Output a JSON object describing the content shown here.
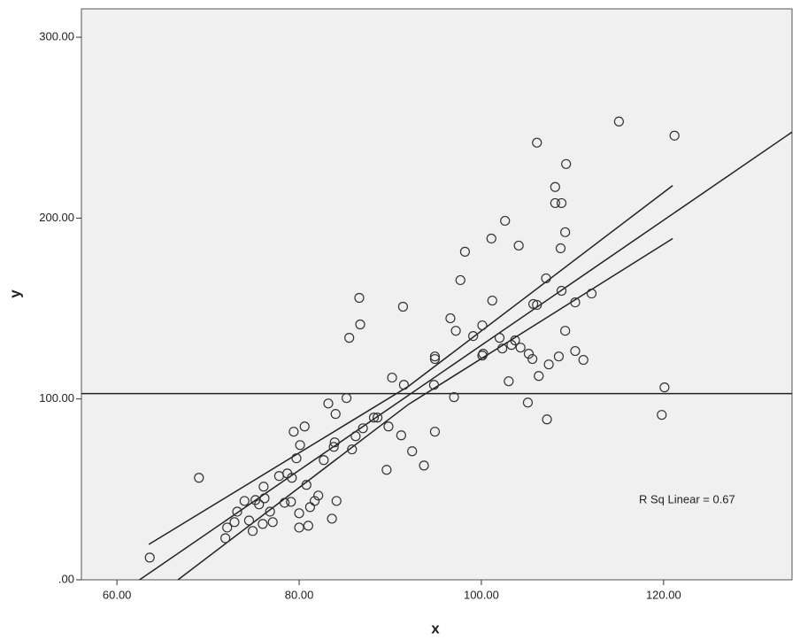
{
  "chart_data": {
    "type": "scatter",
    "xlabel": "x",
    "ylabel": "y",
    "annotation": "R Sq Linear = 0.67",
    "xlim": [
      56.1,
      134.1
    ],
    "ylim": [
      0,
      315.7
    ],
    "xticks": [
      {
        "value": 60,
        "label": "60.00"
      },
      {
        "value": 80,
        "label": "80.00"
      },
      {
        "value": 100,
        "label": "100.00"
      },
      {
        "value": 120,
        "label": "120.00"
      }
    ],
    "yticks": [
      {
        "value": 0,
        "label": ".00"
      },
      {
        "value": 100,
        "label": "100.00"
      },
      {
        "value": 200,
        "label": "200.00"
      },
      {
        "value": 300,
        "label": "300.00"
      }
    ],
    "color": "#333333",
    "background": "#f0f0f0",
    "x": [
      63.6,
      69.0,
      71.9,
      72.1,
      72.9,
      73.2,
      74.0,
      74.5,
      74.9,
      75.2,
      75.6,
      76.0,
      76.1,
      76.2,
      76.8,
      77.1,
      77.8,
      78.4,
      78.7,
      79.1,
      79.2,
      79.4,
      79.7,
      80.0,
      80.1,
      80.0,
      80.6,
      80.8,
      81.0,
      81.2,
      81.7,
      82.1,
      82.7,
      83.2,
      83.6,
      83.8,
      83.9,
      84.0,
      84.1,
      85.2,
      85.5,
      85.8,
      86.2,
      86.6,
      86.7,
      87.0,
      88.2,
      88.6,
      89.6,
      89.8,
      90.2,
      91.2,
      91.4,
      91.5,
      92.4,
      93.7,
      94.8,
      94.9,
      94.9,
      94.9,
      96.6,
      97.0,
      97.2,
      97.7,
      98.2,
      99.1,
      100.1,
      100.1,
      100.2,
      101.1,
      101.2,
      102.0,
      102.3,
      102.6,
      103.0,
      103.3,
      103.7,
      104.1,
      104.3,
      105.1,
      105.2,
      105.6,
      105.7,
      106.1,
      106.1,
      106.3,
      107.1,
      107.2,
      107.4,
      108.1,
      108.1,
      108.5,
      108.8,
      108.7,
      108.8,
      109.3,
      109.2,
      109.2,
      110.3,
      110.3,
      111.2,
      112.1,
      115.1,
      119.8,
      120.1,
      121.2
    ],
    "values": [
      12.3,
      56.4,
      23.0,
      28.9,
      31.9,
      37.7,
      43.6,
      32.8,
      27.0,
      44.1,
      41.7,
      30.9,
      51.5,
      45.1,
      37.7,
      31.9,
      57.4,
      42.6,
      58.8,
      43.1,
      56.4,
      81.9,
      67.2,
      36.8,
      74.5,
      28.9,
      84.8,
      52.5,
      29.9,
      40.2,
      43.6,
      46.6,
      66.2,
      97.5,
      33.8,
      73.5,
      76.0,
      91.7,
      43.6,
      100.5,
      133.8,
      72.1,
      79.4,
      155.9,
      141.2,
      83.8,
      89.7,
      89.7,
      60.8,
      84.8,
      111.8,
      79.9,
      151.0,
      107.8,
      71.1,
      63.2,
      107.8,
      123.5,
      122.1,
      81.9,
      144.6,
      101.0,
      137.7,
      165.7,
      181.4,
      134.8,
      140.7,
      124.0,
      125.0,
      188.7,
      154.4,
      133.8,
      127.9,
      198.5,
      109.8,
      129.9,
      132.4,
      184.8,
      128.4,
      98.0,
      125.0,
      122.1,
      152.5,
      152.0,
      241.7,
      112.7,
      166.7,
      88.7,
      119.1,
      217.2,
      208.3,
      123.5,
      208.3,
      183.3,
      159.8,
      229.9,
      192.2,
      137.7,
      153.4,
      126.5,
      121.6,
      158.3,
      253.4,
      91.2,
      106.4,
      245.6
    ],
    "fit": {
      "slope": 3.457,
      "intercept": -216
    },
    "mean_line": 103,
    "bands": [
      {
        "x": [
          63.5,
          92,
          121
        ],
        "y": [
          19.6,
          107,
          218
        ]
      },
      {
        "x": [
          66.7,
          92,
          121
        ],
        "y": [
          0,
          97,
          188.7
        ]
      }
    ]
  }
}
